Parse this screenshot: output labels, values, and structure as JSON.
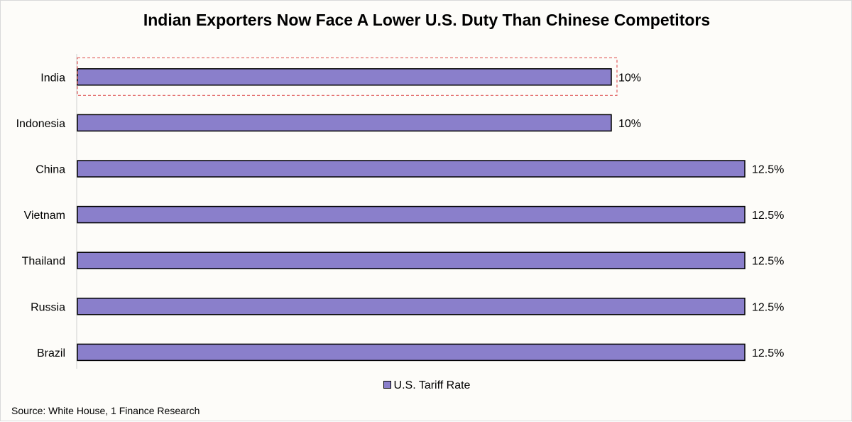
{
  "chart_data": {
    "type": "bar",
    "orientation": "horizontal",
    "title": "Indian Exporters Now Face A Lower U.S. Duty Than Chinese Competitors",
    "categories": [
      "India",
      "Indonesia",
      "China",
      "Vietnam",
      "Thailand",
      "Russia",
      "Brazil"
    ],
    "series": [
      {
        "name": "U.S. Tariff Rate",
        "values": [
          10,
          10,
          12.5,
          12.5,
          12.5,
          12.5,
          12.5
        ],
        "labels": [
          "10%",
          "10%",
          "12.5%",
          "12.5%",
          "12.5%",
          "12.5%",
          "12.5%"
        ],
        "color": "#8a7fcb"
      }
    ],
    "xlim": [
      0,
      12.5
    ],
    "grid": false,
    "legend": "bottom",
    "highlight": "India",
    "highlight_color": "#e05a5a"
  },
  "footer": {
    "source": "Source: White House, 1 Finance Research"
  }
}
